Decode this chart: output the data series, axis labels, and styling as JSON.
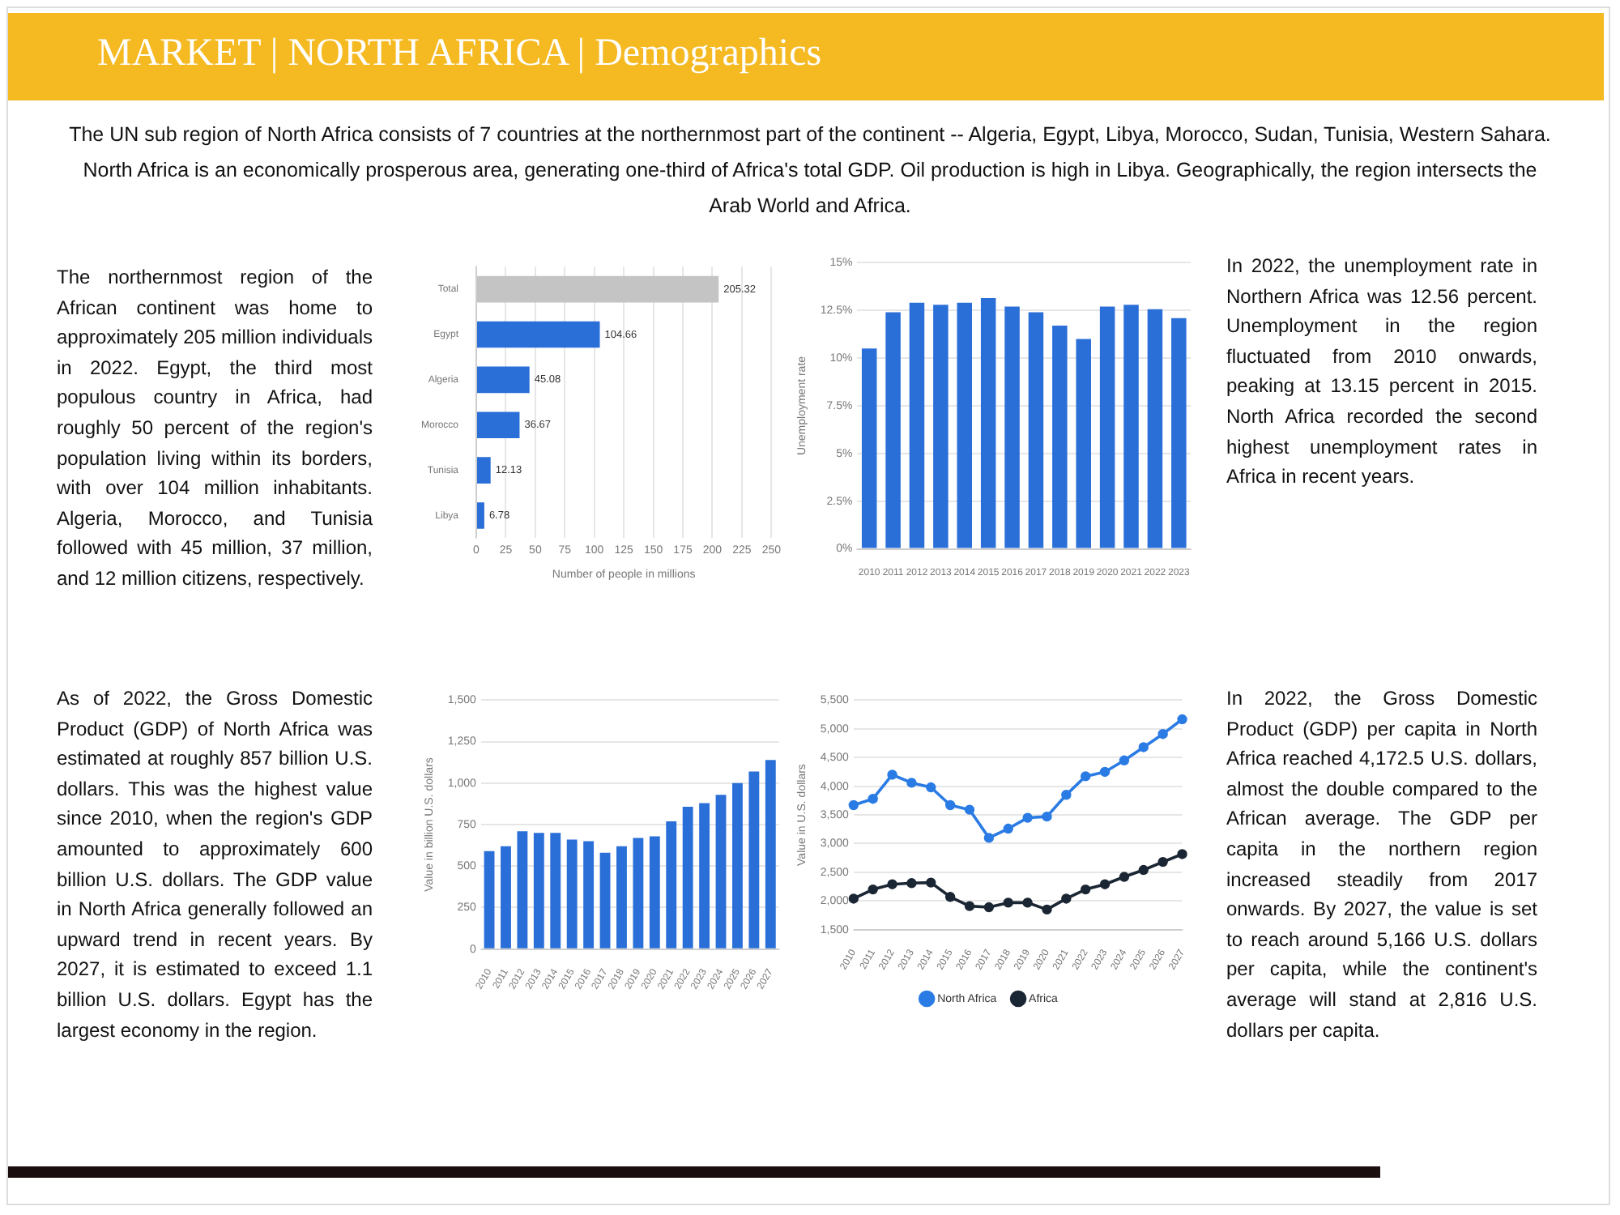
{
  "chart_data": [
    {
      "type": "other",
      "title": "MARKET | NORTH AFRICA | Demographics",
      "annotations": [
        "The UN sub region of North Africa consists of 7 countries at the northernmost part of the continent -- Algeria, Egypt, Libya, Morocco, Sudan, Tunisia, Western Sahara. North Africa is an economically prosperous area, generating one-third of Africa's total GDP. Oil production is high in Libya. Geographically, the region intersects the Arab World and Africa."
      ]
    },
    {
      "type": "bar",
      "orientation": "horizontal",
      "categories": [
        "Total",
        "Egypt",
        "Algeria",
        "Morocco",
        "Tunisia",
        "Libya"
      ],
      "values": [
        205.32,
        104.66,
        45.08,
        36.67,
        12.13,
        6.78
      ],
      "colors": [
        "#c4c4c4",
        "#2a6fd8",
        "#2a6fd8",
        "#2a6fd8",
        "#2a6fd8",
        "#2a6fd8"
      ],
      "xlim": [
        0,
        250
      ],
      "xticks": [
        0,
        25,
        50,
        75,
        100,
        125,
        150,
        175,
        200,
        225,
        250
      ],
      "xlabel": "Number of people in millions",
      "grid": "x",
      "data_labels": true,
      "annotations": [
        "The northernmost region of the African continent was home to approximately 205 million individuals in 2022. Egypt, the third most populous country in Africa, had roughly 50 percent of the region's population living within its borders, with over 104 million inhabitants. Algeria, Morocco, and Tunisia followed with 45 million, 37 million, and 12 million citizens, respectively."
      ]
    },
    {
      "type": "bar",
      "categories": [
        "2010",
        "2011",
        "2012",
        "2013",
        "2014",
        "2015",
        "2016",
        "2017",
        "2018",
        "2019",
        "2020",
        "2021",
        "2022",
        "2023"
      ],
      "values": [
        10.5,
        12.4,
        12.9,
        12.8,
        12.9,
        13.15,
        12.7,
        12.4,
        11.7,
        11,
        12.7,
        12.8,
        12.56,
        12.1
      ],
      "color": "#2a6fd8",
      "ylim": [
        0,
        15
      ],
      "yticks": [
        {
          "value": 0,
          "label": "0%"
        },
        {
          "value": 2.5,
          "label": "2.5%"
        },
        {
          "value": 5,
          "label": "5%"
        },
        {
          "value": 7.5,
          "label": "7.5%"
        },
        {
          "value": 10,
          "label": "10%"
        },
        {
          "value": 12.5,
          "label": "12.5%"
        },
        {
          "value": 15,
          "label": "15%"
        }
      ],
      "ylabel": "Unemployment rate",
      "grid": "y",
      "annotations": [
        "In 2022, the unemployment rate in Northern Africa was 12.56 percent. Unemployment in the region fluctuated from 2010 onwards, peaking at 13.15 percent in 2015. North Africa recorded the second highest unemployment rates in Africa in recent years."
      ]
    },
    {
      "type": "bar",
      "categories": [
        "2010",
        "2011",
        "2012",
        "2013",
        "2014",
        "2015",
        "2016",
        "2017",
        "2018",
        "2019",
        "2020",
        "2021",
        "2022",
        "2023",
        "2024",
        "2025",
        "2026",
        "2027"
      ],
      "values": [
        590,
        620,
        710,
        700,
        700,
        660,
        650,
        580,
        620,
        670,
        680,
        770,
        857,
        880,
        930,
        1000,
        1070,
        1140
      ],
      "color": "#2a6fd8",
      "ylim": [
        0,
        1500
      ],
      "yticks": [
        0,
        250,
        500,
        750,
        {
          "value": 1000,
          "label": "1,000"
        },
        {
          "value": 1250,
          "label": "1,250"
        },
        {
          "value": 1500,
          "label": "1,500"
        }
      ],
      "ylabel": "Value in billion U.S. dollars",
      "grid": "y",
      "annotations": [
        "As of 2022, the Gross Domestic Product (GDP) of North Africa was estimated at roughly 857 billion U.S. dollars. This was the highest value since 2010, when the region's GDP amounted to approximately 600 billion U.S. dollars. The GDP value in North Africa generally followed an upward trend in recent years. By 2027, it is estimated to exceed 1.1 billion U.S. dollars. Egypt has the largest economy in the region."
      ]
    },
    {
      "type": "line",
      "categories": [
        "2010",
        "2011",
        "2012",
        "2013",
        "2014",
        "2015",
        "2016",
        "2017",
        "2018",
        "2019",
        "2020",
        "2021",
        "2022",
        "2023",
        "2024",
        "2025",
        "2026",
        "2027"
      ],
      "series": [
        {
          "name": "North Africa",
          "color": "#2a7be4",
          "values": [
            3670,
            3780,
            4200,
            4060,
            3980,
            3670,
            3590,
            3100,
            3260,
            3450,
            3470,
            3850,
            4172.5,
            4250,
            4450,
            4680,
            4910,
            5166
          ]
        },
        {
          "name": "Africa",
          "color": "#1b2634",
          "values": [
            2040,
            2200,
            2290,
            2310,
            2320,
            2070,
            1910,
            1890,
            1970,
            1970,
            1850,
            2040,
            2200,
            2290,
            2420,
            2540,
            2680,
            2816
          ]
        }
      ],
      "ylim": [
        1500,
        5500
      ],
      "yticks": [
        {
          "value": 1500,
          "label": "1,500"
        },
        {
          "value": 2000,
          "label": "2,000"
        },
        {
          "value": 2500,
          "label": "2,500"
        },
        {
          "value": 3000,
          "label": "3,000"
        },
        {
          "value": 3500,
          "label": "3,500"
        },
        {
          "value": 4000,
          "label": "4,000"
        },
        {
          "value": 4500,
          "label": "4,500"
        },
        {
          "value": 5000,
          "label": "5,000"
        },
        {
          "value": 5500,
          "label": "5,500"
        }
      ],
      "ylabel": "Value in U.S. dollars",
      "grid": "y",
      "legend": "bottom",
      "marker": "circle",
      "line_style": "solid",
      "annotations": [
        "In 2022, the Gross Domestic Product (GDP) per capita in North Africa reached 4,172.5 U.S. dollars, almost the double compared to the African average. The GDP per capita in the northern region increased steadily from 2017 onwards. By 2027, the value is set to reach around 5,166 U.S. dollars per capita, while the continent's average will stand at 2,816 U.S. dollars per capita."
      ]
    }
  ]
}
